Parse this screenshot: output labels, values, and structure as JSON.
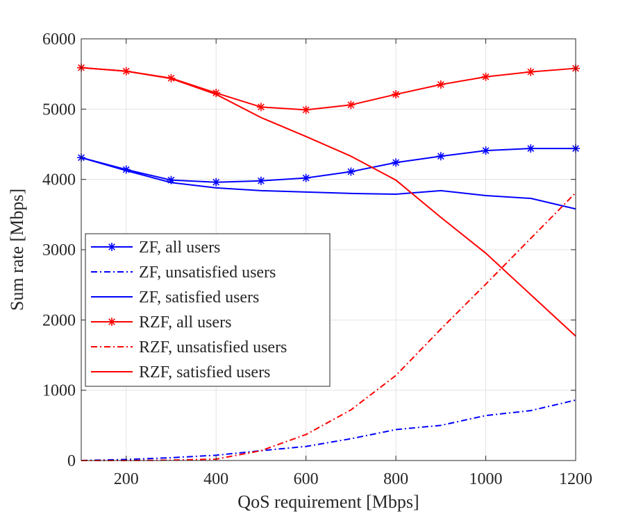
{
  "chart_data": {
    "type": "line",
    "title": "",
    "xlabel": "QoS requirement [Mbps]",
    "ylabel": "Sum rate [Mbps]",
    "xlim": [
      100,
      1200
    ],
    "ylim": [
      0,
      6000
    ],
    "xticks": [
      200,
      400,
      600,
      800,
      1000,
      1200
    ],
    "yticks": [
      0,
      1000,
      2000,
      3000,
      4000,
      5000,
      6000
    ],
    "grid": true,
    "legend_position": "center-left",
    "x": [
      100,
      200,
      300,
      400,
      500,
      600,
      700,
      800,
      900,
      1000,
      1100,
      1200
    ],
    "series": [
      {
        "name": "ZF, all users",
        "color": "#0000ff",
        "line_style": "solid",
        "marker": "asterisk",
        "values": [
          4310,
          4140,
          3990,
          3960,
          3980,
          4020,
          4110,
          4240,
          4330,
          4410,
          4440,
          4440
        ]
      },
      {
        "name": "ZF, unsatisfied users",
        "color": "#0000ff",
        "line_style": "dash-dot",
        "marker": "none",
        "values": [
          0,
          15,
          40,
          75,
          140,
          200,
          310,
          440,
          500,
          640,
          710,
          860
        ]
      },
      {
        "name": "ZF, satisfied users",
        "color": "#0000ff",
        "line_style": "solid",
        "marker": "none",
        "values": [
          4310,
          4125,
          3955,
          3880,
          3840,
          3820,
          3800,
          3790,
          3840,
          3770,
          3730,
          3580
        ]
      },
      {
        "name": "RZF, all users",
        "color": "#ff0000",
        "line_style": "solid",
        "marker": "asterisk",
        "values": [
          5590,
          5540,
          5440,
          5230,
          5030,
          4990,
          5060,
          5210,
          5350,
          5460,
          5530,
          5580
        ]
      },
      {
        "name": "RZF, unsatisfied users",
        "color": "#ff0000",
        "line_style": "dash-dot",
        "marker": "none",
        "values": [
          0,
          0,
          5,
          20,
          140,
          370,
          720,
          1210,
          1870,
          2510,
          3160,
          3810
        ]
      },
      {
        "name": "RZF, satisfied users",
        "color": "#ff0000",
        "line_style": "solid",
        "marker": "none",
        "values": [
          5590,
          5540,
          5435,
          5210,
          4880,
          4610,
          4330,
          3990,
          3460,
          2950,
          2360,
          1770
        ]
      }
    ]
  }
}
